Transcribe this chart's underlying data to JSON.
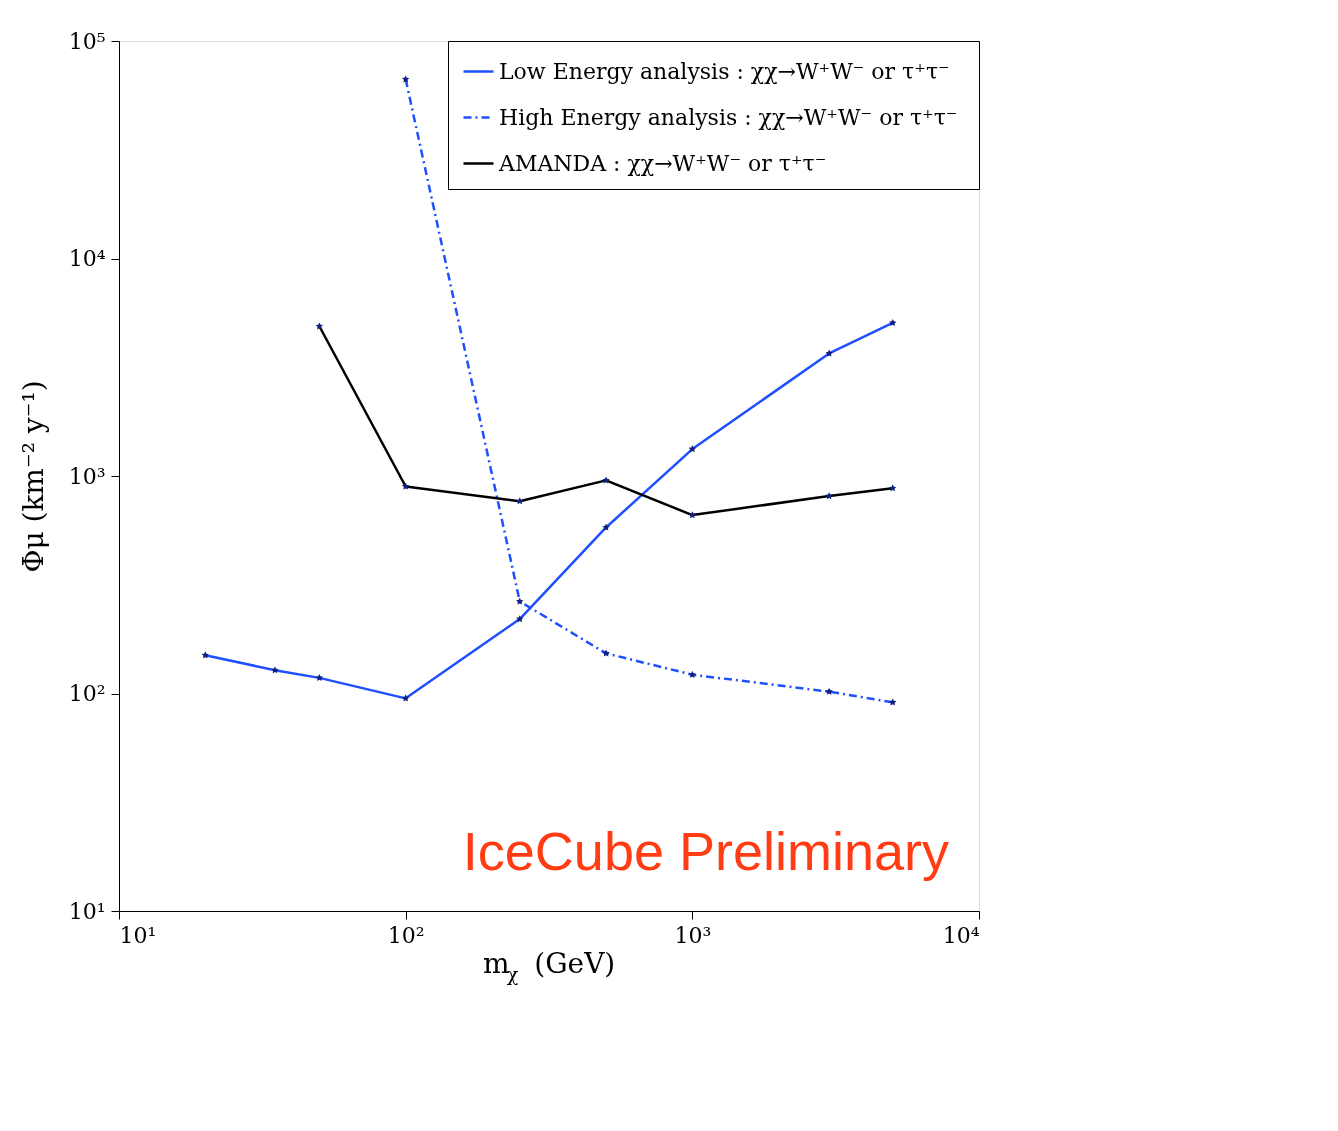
{
  "chart_data": {
    "type": "line",
    "xlabel": "m$_{χ}$ (GeV)",
    "ylabel": "Φμ (km⁻² y⁻¹)",
    "log": "xy",
    "grid": false,
    "legend": "top right",
    "marker": "star",
    "xlim": [
      10,
      10000
    ],
    "xticks": [
      {
        "value": 10,
        "label": "10¹"
      },
      {
        "value": 100,
        "label": "10²"
      },
      {
        "value": 1000,
        "label": "10³"
      },
      {
        "value": 10000,
        "label": "10⁴"
      }
    ],
    "ylim": [
      10,
      100000
    ],
    "yticks": [
      {
        "value": 10,
        "label": "10¹"
      },
      {
        "value": 100,
        "label": "10²"
      },
      {
        "value": 1000,
        "label": "10³"
      },
      {
        "value": 10000,
        "label": "10⁴"
      },
      {
        "value": 100000,
        "label": "10⁵"
      }
    ],
    "series": [
      {
        "name": "Low Energy analysis : χχ→W⁺W⁻  or τ⁺τ⁻",
        "color": "#1f4fff",
        "line_style": "solid",
        "x": [
          20,
          35,
          50,
          100,
          250,
          500,
          1000,
          3000,
          5000
        ],
        "values": [
          150,
          128,
          118,
          95,
          220,
          580,
          1330,
          3660,
          5060
        ]
      },
      {
        "name": "High Energy analysis : χχ→W⁺W⁻  or τ⁺τ⁻",
        "color": "#1f4fff",
        "line_style": "dashed",
        "x": [
          100,
          250,
          500,
          1000,
          3000,
          5000
        ],
        "values": [
          66700,
          265,
          153,
          122,
          102,
          91
        ]
      },
      {
        "name": "AMANDA : χχ→W⁺W⁻  or τ⁺τ⁻",
        "color": "#000000",
        "line_style": "solid",
        "x": [
          50,
          100,
          250,
          500,
          1000,
          3000,
          5000
        ],
        "values": [
          4880,
          895,
          766,
          955,
          661,
          809,
          879
        ]
      }
    ],
    "annotations": [
      "IceCube Preliminary"
    ]
  }
}
